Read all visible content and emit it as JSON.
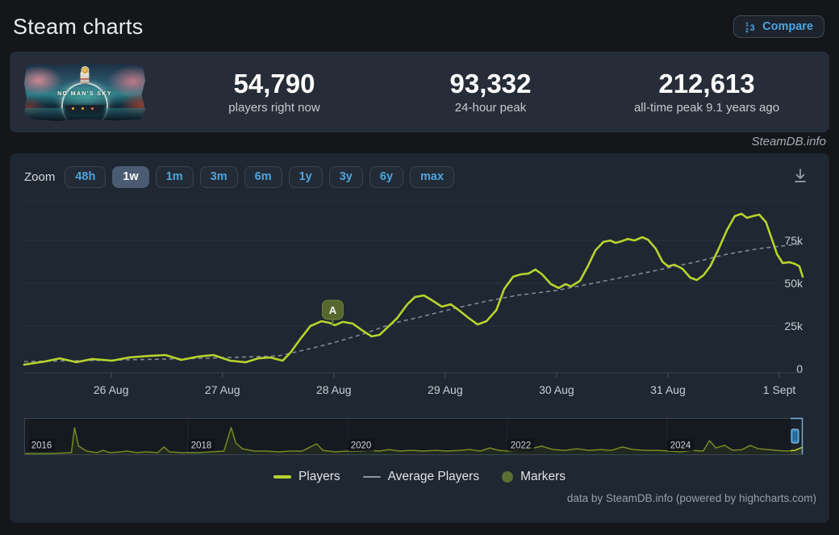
{
  "header": {
    "title": "Steam charts",
    "compare_label": "Compare"
  },
  "game": {
    "title": "NO MAN'S SKY"
  },
  "stats": [
    {
      "value": "54,790",
      "label": "players right now"
    },
    {
      "value": "93,332",
      "label": "24-hour peak"
    },
    {
      "value": "212,613",
      "label": "all-time peak 9.1 years ago"
    }
  ],
  "watermark": "SteamDB.info",
  "chart": {
    "zoom_label": "Zoom",
    "zoom_buttons": [
      "48h",
      "1w",
      "1m",
      "3m",
      "6m",
      "1y",
      "3y",
      "6y",
      "max"
    ],
    "selected_zoom": "1w",
    "credits": "data by SteamDB.info (powered by highcharts.com)"
  },
  "colors": {
    "players_line": "#b6d42c",
    "average_line": "#8d969e",
    "marker_fill": "#57682e",
    "accent_blue": "#4fa4dd",
    "grid": "#2b3540",
    "axis_label": "#c9ced3",
    "navigator_handle": "#2e80b6"
  },
  "chart_data": {
    "type": "line",
    "title": "",
    "unit_y": "concurrent players (thousands)",
    "ylim_k": [
      0,
      98
    ],
    "x_window_days": [
      0.22,
      7.21
    ],
    "grid": true,
    "legend_position": "bottom-center",
    "legend": [
      "Players",
      "Average Players",
      "Markers"
    ],
    "x_ticks": [
      {
        "day": 1,
        "label": "26 Aug"
      },
      {
        "day": 2,
        "label": "27 Aug"
      },
      {
        "day": 3,
        "label": "28 Aug"
      },
      {
        "day": 4,
        "label": "29 Aug"
      },
      {
        "day": 5,
        "label": "30 Aug"
      },
      {
        "day": 6,
        "label": "31 Aug"
      },
      {
        "day": 7,
        "label": "1 Sept"
      }
    ],
    "y_ticks": [
      {
        "v": 0,
        "label": "0"
      },
      {
        "v": 25,
        "label": "25k"
      },
      {
        "v": 50,
        "label": "50k"
      },
      {
        "v": 75,
        "label": "75k"
      }
    ],
    "series": [
      {
        "name": "Players",
        "color": "#b6d42c",
        "dashed": false,
        "points": [
          [
            0.22,
            2.4
          ],
          [
            0.4,
            4.2
          ],
          [
            0.54,
            6.1
          ],
          [
            0.69,
            3.8
          ],
          [
            0.83,
            5.7
          ],
          [
            1.01,
            4.7
          ],
          [
            1.16,
            6.6
          ],
          [
            1.34,
            7.5
          ],
          [
            1.49,
            8.0
          ],
          [
            1.63,
            5.2
          ],
          [
            1.78,
            7.1
          ],
          [
            1.92,
            8.0
          ],
          [
            2.07,
            4.7
          ],
          [
            2.21,
            3.8
          ],
          [
            2.32,
            6.1
          ],
          [
            2.43,
            6.6
          ],
          [
            2.54,
            4.7
          ],
          [
            2.61,
            9.4
          ],
          [
            2.7,
            17.5
          ],
          [
            2.79,
            25.0
          ],
          [
            2.89,
            27.8
          ],
          [
            2.96,
            26.9
          ],
          [
            3.01,
            25.5
          ],
          [
            3.08,
            27.4
          ],
          [
            3.17,
            26.4
          ],
          [
            3.26,
            22.2
          ],
          [
            3.34,
            18.9
          ],
          [
            3.41,
            19.8
          ],
          [
            3.48,
            24.1
          ],
          [
            3.57,
            29.7
          ],
          [
            3.66,
            37.7
          ],
          [
            3.73,
            42.0
          ],
          [
            3.81,
            42.9
          ],
          [
            3.88,
            40.1
          ],
          [
            3.97,
            36.3
          ],
          [
            4.05,
            37.7
          ],
          [
            4.12,
            34.4
          ],
          [
            4.21,
            29.7
          ],
          [
            4.29,
            25.9
          ],
          [
            4.37,
            27.8
          ],
          [
            4.46,
            34.4
          ],
          [
            4.53,
            46.7
          ],
          [
            4.61,
            53.8
          ],
          [
            4.68,
            55.2
          ],
          [
            4.75,
            55.7
          ],
          [
            4.81,
            58.0
          ],
          [
            4.87,
            55.2
          ],
          [
            4.95,
            49.5
          ],
          [
            5.02,
            47.2
          ],
          [
            5.08,
            49.5
          ],
          [
            5.13,
            48.1
          ],
          [
            5.21,
            51.4
          ],
          [
            5.28,
            59.9
          ],
          [
            5.35,
            69.3
          ],
          [
            5.42,
            74.1
          ],
          [
            5.48,
            75.0
          ],
          [
            5.53,
            73.6
          ],
          [
            5.58,
            74.5
          ],
          [
            5.64,
            75.9
          ],
          [
            5.7,
            75.0
          ],
          [
            5.77,
            76.9
          ],
          [
            5.82,
            75.5
          ],
          [
            5.89,
            70.3
          ],
          [
            5.95,
            62.7
          ],
          [
            6.0,
            59.9
          ],
          [
            6.06,
            60.8
          ],
          [
            6.13,
            58.5
          ],
          [
            6.2,
            53.3
          ],
          [
            6.26,
            51.9
          ],
          [
            6.32,
            54.7
          ],
          [
            6.38,
            59.9
          ],
          [
            6.45,
            69.3
          ],
          [
            6.53,
            81.1
          ],
          [
            6.6,
            89.2
          ],
          [
            6.66,
            90.6
          ],
          [
            6.71,
            88.2
          ],
          [
            6.76,
            89.2
          ],
          [
            6.82,
            90.1
          ],
          [
            6.88,
            85.8
          ],
          [
            6.93,
            76.4
          ],
          [
            6.98,
            67.0
          ],
          [
            7.03,
            61.8
          ],
          [
            7.09,
            62.3
          ],
          [
            7.14,
            61.3
          ],
          [
            7.18,
            59.9
          ],
          [
            7.21,
            53.8
          ]
        ]
      },
      {
        "name": "Average Players",
        "color": "#8d969e",
        "dashed": true,
        "points": [
          [
            0.22,
            4.2
          ],
          [
            1.09,
            5.2
          ],
          [
            1.81,
            6.1
          ],
          [
            2.5,
            7.5
          ],
          [
            2.76,
            11.3
          ],
          [
            2.99,
            15.1
          ],
          [
            3.26,
            20.3
          ],
          [
            3.55,
            26.9
          ],
          [
            3.77,
            30.2
          ],
          [
            4.06,
            34.9
          ],
          [
            4.35,
            39.2
          ],
          [
            4.64,
            42.9
          ],
          [
            5.0,
            45.8
          ],
          [
            5.29,
            49.5
          ],
          [
            5.58,
            53.3
          ],
          [
            5.87,
            57.1
          ],
          [
            6.24,
            62.3
          ],
          [
            6.53,
            67.0
          ],
          [
            6.82,
            70.3
          ],
          [
            7.21,
            73.1
          ]
        ]
      }
    ],
    "markers": [
      {
        "label": "A",
        "day": 2.99,
        "players_k": 25.5
      }
    ],
    "navigator": {
      "x_ticks": [
        {
          "year": 2016,
          "label": "2016"
        },
        {
          "year": 2018,
          "label": "2018"
        },
        {
          "year": 2020,
          "label": "2020"
        },
        {
          "year": 2022,
          "label": "2022"
        },
        {
          "year": 2024,
          "label": "2024"
        }
      ],
      "series_name": "Players (all time)",
      "points": [
        [
          2015.95,
          6
        ],
        [
          2016.25,
          6
        ],
        [
          2016.54,
          12
        ],
        [
          2016.58,
          200
        ],
        [
          2016.63,
          61
        ],
        [
          2016.73,
          24
        ],
        [
          2016.86,
          12
        ],
        [
          2016.94,
          30
        ],
        [
          2017.02,
          12
        ],
        [
          2017.16,
          18
        ],
        [
          2017.24,
          24
        ],
        [
          2017.36,
          12
        ],
        [
          2017.48,
          18
        ],
        [
          2017.62,
          12
        ],
        [
          2017.7,
          55
        ],
        [
          2017.77,
          18
        ],
        [
          2017.92,
          12
        ],
        [
          2018.12,
          12
        ],
        [
          2018.29,
          18
        ],
        [
          2018.45,
          24
        ],
        [
          2018.54,
          200
        ],
        [
          2018.6,
          85
        ],
        [
          2018.68,
          42
        ],
        [
          2018.83,
          24
        ],
        [
          2018.98,
          24
        ],
        [
          2019.13,
          18
        ],
        [
          2019.28,
          24
        ],
        [
          2019.43,
          24
        ],
        [
          2019.61,
          79
        ],
        [
          2019.69,
          30
        ],
        [
          2019.84,
          18
        ],
        [
          2019.99,
          24
        ],
        [
          2020.14,
          24
        ],
        [
          2020.27,
          30
        ],
        [
          2020.39,
          24
        ],
        [
          2020.52,
          36
        ],
        [
          2020.65,
          24
        ],
        [
          2020.8,
          30
        ],
        [
          2020.95,
          24
        ],
        [
          2021.1,
          30
        ],
        [
          2021.25,
          24
        ],
        [
          2021.4,
          30
        ],
        [
          2021.53,
          36
        ],
        [
          2021.66,
          24
        ],
        [
          2021.78,
          48
        ],
        [
          2021.89,
          30
        ],
        [
          2022.01,
          24
        ],
        [
          2022.16,
          36
        ],
        [
          2022.29,
          42
        ],
        [
          2022.43,
          61
        ],
        [
          2022.57,
          36
        ],
        [
          2022.72,
          30
        ],
        [
          2022.87,
          42
        ],
        [
          2023.02,
          30
        ],
        [
          2023.17,
          36
        ],
        [
          2023.3,
          30
        ],
        [
          2023.44,
          55
        ],
        [
          2023.57,
          36
        ],
        [
          2023.73,
          30
        ],
        [
          2023.88,
          30
        ],
        [
          2024.03,
          24
        ],
        [
          2024.16,
          18
        ],
        [
          2024.31,
          30
        ],
        [
          2024.45,
          24
        ],
        [
          2024.53,
          103
        ],
        [
          2024.61,
          48
        ],
        [
          2024.72,
          67
        ],
        [
          2024.82,
          30
        ],
        [
          2024.94,
          36
        ],
        [
          2025.04,
          67
        ],
        [
          2025.14,
          42
        ],
        [
          2025.26,
          36
        ],
        [
          2025.37,
          30
        ],
        [
          2025.49,
          24
        ],
        [
          2025.6,
          30
        ],
        [
          2025.7,
          55
        ]
      ]
    }
  }
}
